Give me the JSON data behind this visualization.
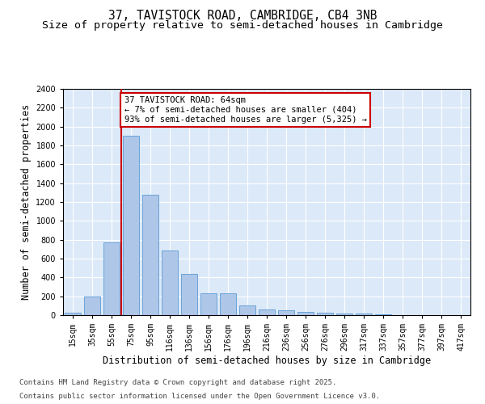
{
  "title1": "37, TAVISTOCK ROAD, CAMBRIDGE, CB4 3NB",
  "title2": "Size of property relative to semi-detached houses in Cambridge",
  "xlabel": "Distribution of semi-detached houses by size in Cambridge",
  "ylabel": "Number of semi-detached properties",
  "categories": [
    "15sqm",
    "35sqm",
    "55sqm",
    "75sqm",
    "95sqm",
    "116sqm",
    "136sqm",
    "156sqm",
    "176sqm",
    "196sqm",
    "216sqm",
    "236sqm",
    "256sqm",
    "276sqm",
    "296sqm",
    "317sqm",
    "337sqm",
    "357sqm",
    "377sqm",
    "397sqm",
    "417sqm"
  ],
  "values": [
    25,
    200,
    770,
    1900,
    1280,
    690,
    435,
    230,
    230,
    105,
    60,
    55,
    35,
    30,
    20,
    20,
    10,
    0,
    0,
    0,
    0
  ],
  "bar_color": "#aec6e8",
  "bar_edge_color": "#5b9bd5",
  "red_line_index": 2,
  "annotation_title": "37 TAVISTOCK ROAD: 64sqm",
  "annotation_line1": "← 7% of semi-detached houses are smaller (404)",
  "annotation_line2": "93% of semi-detached houses are larger (5,325) →",
  "annotation_box_color": "#ffffff",
  "annotation_box_edge": "#cc0000",
  "red_line_color": "#cc0000",
  "ylim": [
    0,
    2400
  ],
  "yticks": [
    0,
    200,
    400,
    600,
    800,
    1000,
    1200,
    1400,
    1600,
    1800,
    2000,
    2200,
    2400
  ],
  "background_color": "#dce9f8",
  "footer1": "Contains HM Land Registry data © Crown copyright and database right 2025.",
  "footer2": "Contains public sector information licensed under the Open Government Licence v3.0.",
  "title1_fontsize": 10.5,
  "title2_fontsize": 9.5,
  "axis_label_fontsize": 8.5,
  "tick_fontsize": 7,
  "footer_fontsize": 6.5,
  "annotation_fontsize": 7.5
}
